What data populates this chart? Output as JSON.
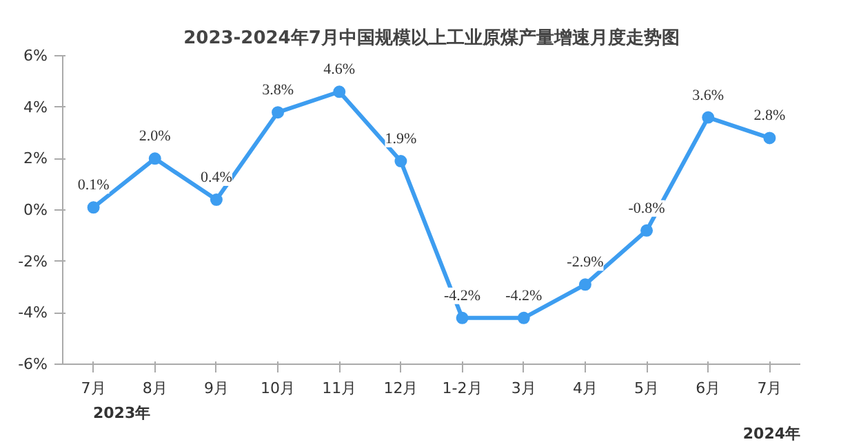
{
  "chart_data": {
    "type": "line",
    "title": "2023-2024年7月中国规模以上工业原煤产量增速月度走势图",
    "categories": [
      "7月",
      "8月",
      "9月",
      "10月",
      "11月",
      "12月",
      "1-2月",
      "3月",
      "4月",
      "5月",
      "6月",
      "7月"
    ],
    "series": [
      {
        "color": "#3d9df0",
        "values": [
          0.1,
          2.0,
          0.4,
          3.8,
          4.6,
          1.9,
          -4.2,
          -4.2,
          -2.9,
          -0.8,
          3.6,
          2.8
        ],
        "value_labels": [
          "0.1%",
          "2.0%",
          "0.4%",
          "3.8%",
          "4.6%",
          "1.9%",
          "-4.2%",
          "-4.2%",
          "-2.9%",
          "-0.8%",
          "3.6%",
          "2.8%"
        ]
      }
    ],
    "ylim": [
      -6,
      6
    ],
    "yticks": [
      {
        "value": -6,
        "label": "-6%"
      },
      {
        "value": -4,
        "label": "-4%"
      },
      {
        "value": -2,
        "label": "-2%"
      },
      {
        "value": 0,
        "label": "0%"
      },
      {
        "value": 2,
        "label": "2%"
      },
      {
        "value": 4,
        "label": "4%"
      },
      {
        "value": 6,
        "label": "6%"
      }
    ],
    "annotations": [
      "2023年",
      "2024年"
    ],
    "grid": false,
    "marker": "circle",
    "line_style": "solid"
  }
}
